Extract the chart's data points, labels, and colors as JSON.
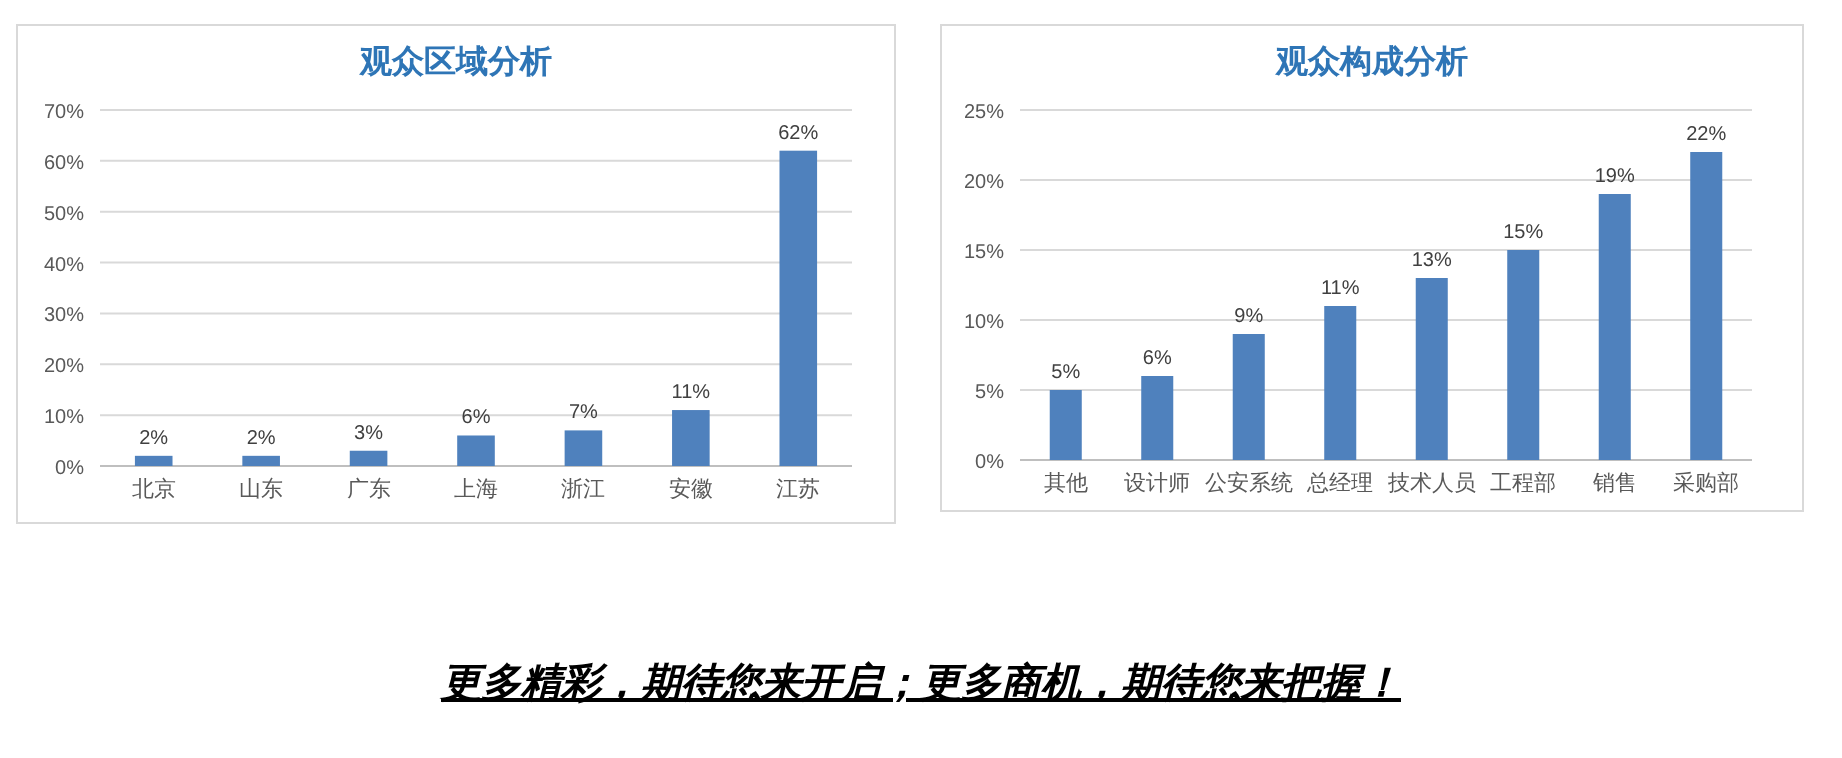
{
  "chart_data": [
    {
      "type": "bar",
      "title": "观众区域分析",
      "categories": [
        "北京",
        "山东",
        "广东",
        "上海",
        "浙江",
        "安徽",
        "江苏"
      ],
      "series": [
        {
          "color": "#4f81bd",
          "values": [
            2,
            2,
            3,
            6,
            7,
            11,
            62
          ],
          "value_labels": [
            "2%",
            "2%",
            "3%",
            "6%",
            "7%",
            "11%",
            "62%"
          ]
        }
      ],
      "ylim": [
        0,
        70
      ],
      "yticks": [
        {
          "value": 0,
          "label": "0%"
        },
        {
          "value": 10,
          "label": "10%"
        },
        {
          "value": 20,
          "label": "20%"
        },
        {
          "value": 30,
          "label": "30%"
        },
        {
          "value": 40,
          "label": "40%"
        },
        {
          "value": 50,
          "label": "50%"
        },
        {
          "value": 60,
          "label": "60%"
        },
        {
          "value": 70,
          "label": "70%"
        }
      ],
      "grid": "y"
    },
    {
      "type": "bar",
      "title": "观众构成分析",
      "categories": [
        "其他",
        "设计师",
        "公安系统",
        "总经理",
        "技术人员",
        "工程部",
        "销售",
        "采购部"
      ],
      "series": [
        {
          "color": "#4f81bd",
          "values": [
            5,
            6,
            9,
            11,
            13,
            15,
            19,
            22
          ],
          "value_labels": [
            "5%",
            "6%",
            "9%",
            "11%",
            "13%",
            "15%",
            "19%",
            "22%"
          ]
        }
      ],
      "ylim": [
        0,
        25
      ],
      "yticks": [
        {
          "value": 0,
          "label": "0%"
        },
        {
          "value": 5,
          "label": "5%"
        },
        {
          "value": 10,
          "label": "10%"
        },
        {
          "value": 15,
          "label": "15%"
        },
        {
          "value": 20,
          "label": "20%"
        },
        {
          "value": 25,
          "label": "25%"
        }
      ],
      "grid": "y"
    },
    {
      "type": "other",
      "annotations": [
        "更多精彩，期待您来开启；更多商机，期待您来把握！"
      ]
    }
  ]
}
